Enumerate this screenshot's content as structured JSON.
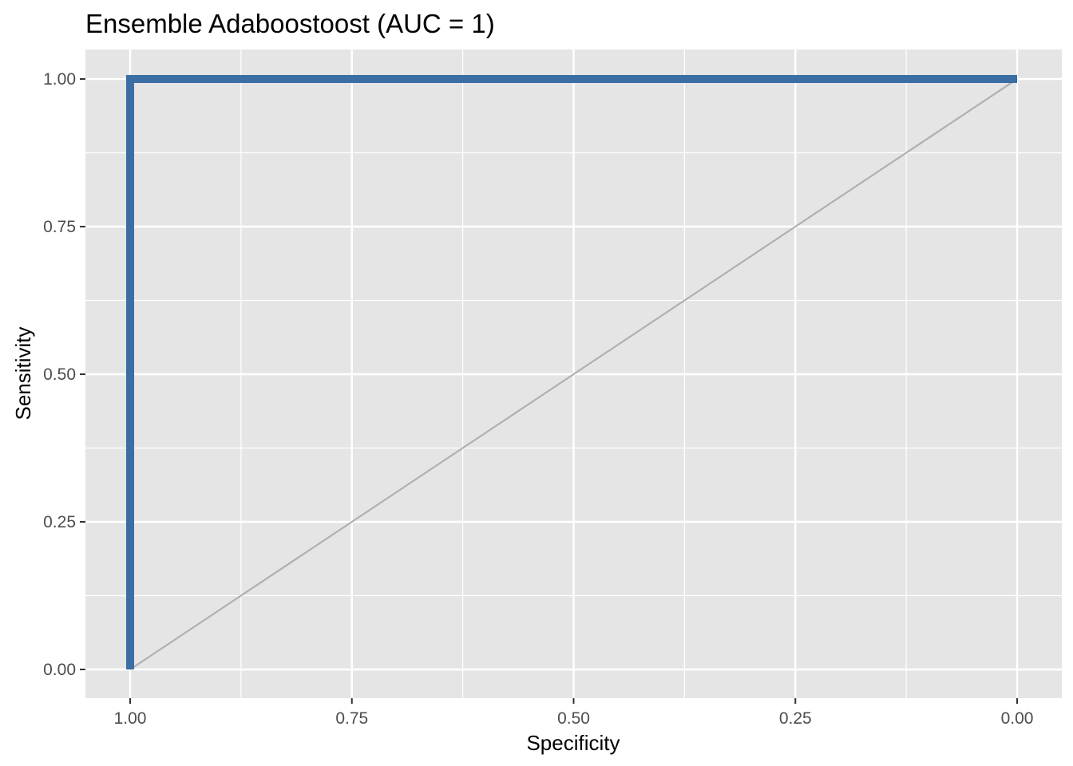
{
  "chart_data": {
    "type": "line",
    "title": "Ensemble Adaboostoost (AUC = 1)",
    "xlabel": "Specificity",
    "ylabel": "Sensitivity",
    "x_reversed": true,
    "xlim": [
      1.0,
      0.0
    ],
    "ylim": [
      0.0,
      1.0
    ],
    "x_ticks": [
      1.0,
      0.75,
      0.5,
      0.25,
      0.0
    ],
    "x_tick_labels": [
      "1.00",
      "0.75",
      "0.50",
      "0.25",
      "0.00"
    ],
    "y_ticks": [
      0.0,
      0.25,
      0.5,
      0.75,
      1.0
    ],
    "y_tick_labels": [
      "0.00",
      "0.25",
      "0.50",
      "0.75",
      "1.00"
    ],
    "grid": true,
    "series": [
      {
        "color": "#3b6ea5",
        "x": [
          1.0,
          1.0,
          0.0
        ],
        "y": [
          0.0,
          1.0,
          1.0
        ]
      }
    ],
    "reference_line": {
      "color": "#b0b0b0",
      "x": [
        1.0,
        0.0
      ],
      "y": [
        0.0,
        1.0
      ]
    },
    "panel_color": "#e5e5e5",
    "grid_color": "#ffffff"
  }
}
